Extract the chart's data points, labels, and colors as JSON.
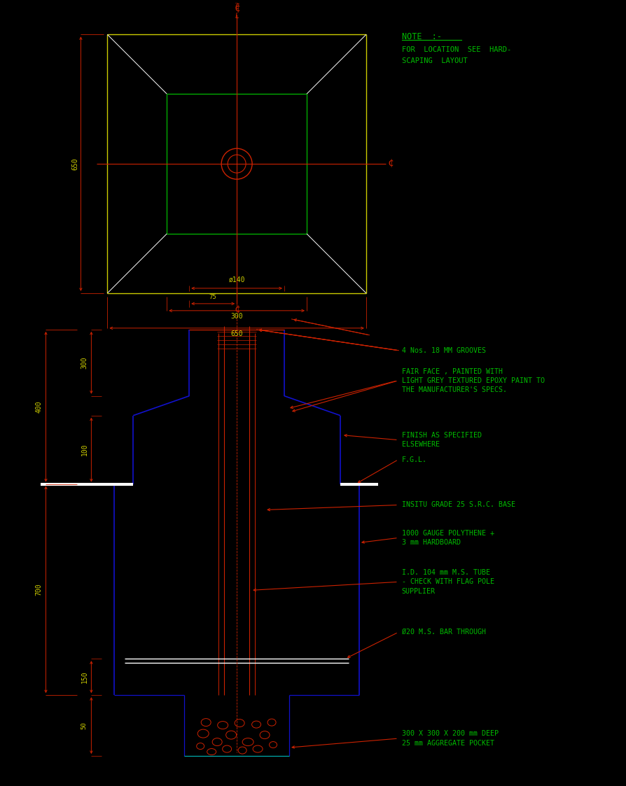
{
  "bg_color": "#000000",
  "red": "#CC2200",
  "green": "#00BB00",
  "white": "#FFFFFF",
  "blue": "#1111CC",
  "cyan": "#00AAAA",
  "yellow": "#CCCC00",
  "tgreen": "#00BB00",
  "tyellow": "#CCCC00",
  "note_title": "NOTE  :-",
  "note_line1": "FOR  LOCATION  SEE  HARD-",
  "note_line2": "SCAPING  LAYOUT"
}
